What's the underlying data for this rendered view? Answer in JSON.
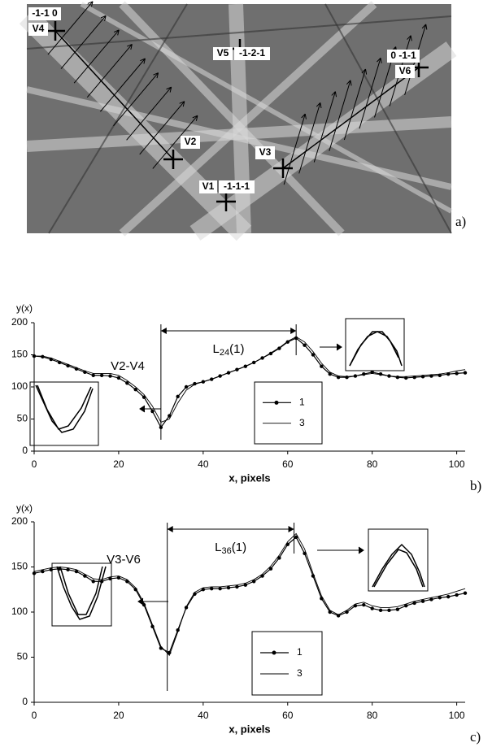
{
  "image_panel": {
    "panel_label": "a)",
    "labels": [
      "-1-1 0",
      "V4",
      "V5",
      "-1-2-1",
      "0 -1-1",
      "V6",
      "V2",
      "V3",
      "V1",
      "-1-1-1"
    ]
  },
  "chart_data": [
    {
      "type": "line",
      "panel_label": "b)",
      "y_label": "y(x)",
      "x_label": "x, pixels",
      "annotation": "V2-V4",
      "span_label": {
        "base": "L",
        "sub": "24",
        "suffix": "(1)"
      },
      "span": [
        30,
        62
      ],
      "xlim": [
        0,
        102
      ],
      "ylim": [
        0,
        200
      ],
      "xticks": [
        0,
        20,
        40,
        60,
        80,
        100
      ],
      "yticks": [
        0,
        50,
        100,
        150,
        200
      ],
      "x": [
        0,
        2,
        4,
        6,
        8,
        10,
        12,
        14,
        16,
        18,
        20,
        22,
        24,
        26,
        28,
        30,
        32,
        34,
        36,
        38,
        40,
        42,
        44,
        46,
        48,
        50,
        52,
        54,
        56,
        58,
        60,
        62,
        64,
        66,
        68,
        70,
        72,
        74,
        76,
        78,
        80,
        82,
        84,
        86,
        88,
        90,
        92,
        94,
        96,
        98,
        100,
        102
      ],
      "series": [
        {
          "name": "1",
          "color": "#000000",
          "markers": true,
          "values": [
            148,
            147,
            143,
            138,
            133,
            128,
            123,
            118,
            118,
            117,
            114,
            106,
            96,
            84,
            62,
            37,
            55,
            85,
            100,
            105,
            108,
            112,
            117,
            122,
            127,
            132,
            138,
            145,
            152,
            160,
            170,
            176,
            165,
            150,
            132,
            120,
            115,
            115,
            117,
            120,
            123,
            120,
            117,
            115,
            114,
            115,
            116,
            117,
            118,
            120,
            121,
            122
          ]
        },
        {
          "name": "3",
          "color": "#000000",
          "markers": false,
          "values": [
            148,
            148,
            145,
            140,
            135,
            130,
            125,
            121,
            121,
            121,
            118,
            110,
            100,
            88,
            70,
            45,
            50,
            75,
            95,
            104,
            108,
            112,
            117,
            122,
            127,
            132,
            138,
            145,
            153,
            161,
            171,
            178,
            170,
            155,
            137,
            123,
            117,
            116,
            117,
            119,
            121,
            119,
            117,
            116,
            116,
            117,
            118,
            119,
            120,
            122,
            125,
            127
          ]
        }
      ]
    },
    {
      "type": "line",
      "panel_label": "c)",
      "y_label": "y(x)",
      "x_label": "x, pixels",
      "annotation": "V3-V6",
      "span_label": {
        "base": "L",
        "sub": "36",
        "suffix": "(1)"
      },
      "span": [
        31.5,
        61.5
      ],
      "xlim": [
        0,
        102
      ],
      "ylim": [
        0,
        200
      ],
      "xticks": [
        0,
        20,
        40,
        60,
        80,
        100
      ],
      "yticks": [
        0,
        50,
        100,
        150,
        200
      ],
      "x": [
        0,
        2,
        4,
        6,
        8,
        10,
        12,
        14,
        16,
        18,
        20,
        22,
        24,
        26,
        28,
        30,
        32,
        34,
        36,
        38,
        40,
        42,
        44,
        46,
        48,
        50,
        52,
        54,
        56,
        58,
        60,
        62,
        64,
        66,
        68,
        70,
        72,
        74,
        76,
        78,
        80,
        82,
        84,
        86,
        88,
        90,
        92,
        94,
        96,
        98,
        100,
        102
      ],
      "series": [
        {
          "name": "1",
          "color": "#000000",
          "markers": true,
          "values": [
            143,
            145,
            147,
            148,
            147,
            145,
            140,
            134,
            134,
            137,
            138,
            134,
            125,
            108,
            84,
            60,
            55,
            80,
            105,
            120,
            125,
            126,
            126,
            127,
            128,
            130,
            134,
            140,
            148,
            160,
            175,
            183,
            165,
            140,
            115,
            100,
            96,
            100,
            107,
            108,
            104,
            102,
            102,
            103,
            107,
            110,
            112,
            114,
            116,
            117,
            119,
            121
          ]
        },
        {
          "name": "3",
          "color": "#000000",
          "markers": false,
          "values": [
            145,
            147,
            149,
            150,
            149,
            147,
            142,
            137,
            136,
            139,
            140,
            136,
            127,
            110,
            86,
            62,
            52,
            78,
            106,
            122,
            127,
            128,
            128,
            129,
            130,
            132,
            136,
            142,
            151,
            163,
            178,
            187,
            170,
            143,
            118,
            102,
            97,
            102,
            109,
            111,
            107,
            105,
            105,
            106,
            109,
            112,
            114,
            116,
            118,
            120,
            123,
            126
          ]
        }
      ]
    }
  ]
}
